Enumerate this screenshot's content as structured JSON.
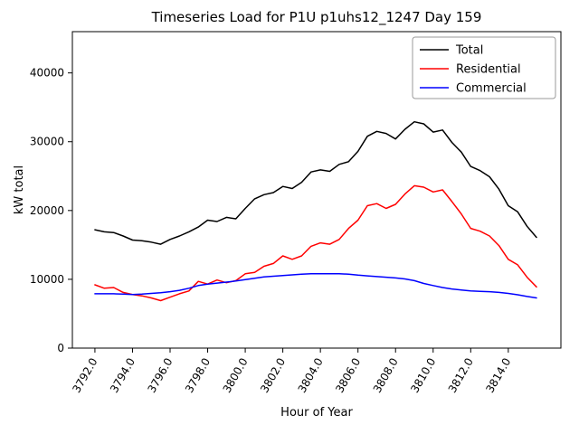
{
  "chart_data": {
    "type": "line",
    "title": "Timeseries Load for P1U p1uhs12_1247  Day 159",
    "xlabel": "Hour of Year",
    "ylabel": "kW total",
    "xlim": [
      3790.8,
      3816.8
    ],
    "ylim": [
      0,
      46000
    ],
    "grid": false,
    "legend_position": "upper right",
    "x_ticks": [
      3792,
      3794,
      3796,
      3798,
      3800,
      3802,
      3804,
      3806,
      3808,
      3810,
      3812,
      3814
    ],
    "x_tick_labels": [
      "3792.0",
      "3794.0",
      "3796.0",
      "3798.0",
      "3800.0",
      "3802.0",
      "3804.0",
      "3806.0",
      "3808.0",
      "3810.0",
      "3812.0",
      "3814.0"
    ],
    "y_ticks": [
      0,
      10000,
      20000,
      30000,
      40000
    ],
    "y_tick_labels": [
      "0",
      "10000",
      "20000",
      "30000",
      "40000"
    ],
    "x": [
      3792.0,
      3792.5,
      3793.0,
      3793.5,
      3794.0,
      3794.5,
      3795.0,
      3795.5,
      3796.0,
      3796.5,
      3797.0,
      3797.5,
      3798.0,
      3798.5,
      3799.0,
      3799.5,
      3800.0,
      3800.5,
      3801.0,
      3801.5,
      3802.0,
      3802.5,
      3803.0,
      3803.5,
      3804.0,
      3804.5,
      3805.0,
      3805.5,
      3806.0,
      3806.5,
      3807.0,
      3807.5,
      3808.0,
      3808.5,
      3809.0,
      3809.5,
      3810.0,
      3810.5,
      3811.0,
      3811.5,
      3812.0,
      3812.5,
      3813.0,
      3813.5,
      3814.0,
      3814.5,
      3815.0,
      3815.5
    ],
    "series": [
      {
        "name": "Total",
        "color": "#000000",
        "values": [
          17200,
          16900,
          16800,
          16300,
          15700,
          15600,
          15400,
          15100,
          15800,
          16300,
          16900,
          17600,
          18600,
          18400,
          19000,
          18800,
          20300,
          21700,
          22300,
          22600,
          23500,
          23200,
          24100,
          25600,
          25900,
          25700,
          26700,
          27100,
          28600,
          30800,
          31500,
          31200,
          30400,
          31800,
          32900,
          32600,
          31400,
          31700,
          29900,
          28500,
          26400,
          25800,
          24900,
          23100,
          20700,
          19800,
          17700,
          16100
        ]
      },
      {
        "name": "Residential",
        "color": "#ff0000",
        "values": [
          9200,
          8700,
          8800,
          8100,
          7800,
          7600,
          7300,
          6900,
          7400,
          7900,
          8300,
          9700,
          9300,
          9900,
          9500,
          9800,
          10800,
          11000,
          11900,
          12300,
          13400,
          12900,
          13400,
          14800,
          15300,
          15100,
          15800,
          17400,
          18600,
          20700,
          21000,
          20300,
          20900,
          22400,
          23600,
          23400,
          22700,
          23000,
          21300,
          19500,
          17400,
          17000,
          16300,
          14900,
          12900,
          12100,
          10300,
          8900
        ]
      },
      {
        "name": "Commercial",
        "color": "#0000ff",
        "values": [
          7900,
          7900,
          7900,
          7850,
          7800,
          7850,
          7950,
          8050,
          8200,
          8400,
          8700,
          9100,
          9300,
          9450,
          9600,
          9750,
          9950,
          10150,
          10350,
          10450,
          10550,
          10650,
          10750,
          10800,
          10800,
          10800,
          10800,
          10750,
          10600,
          10500,
          10400,
          10300,
          10200,
          10050,
          9800,
          9400,
          9100,
          8800,
          8600,
          8450,
          8300,
          8250,
          8200,
          8100,
          7950,
          7750,
          7500,
          7300
        ]
      }
    ]
  }
}
